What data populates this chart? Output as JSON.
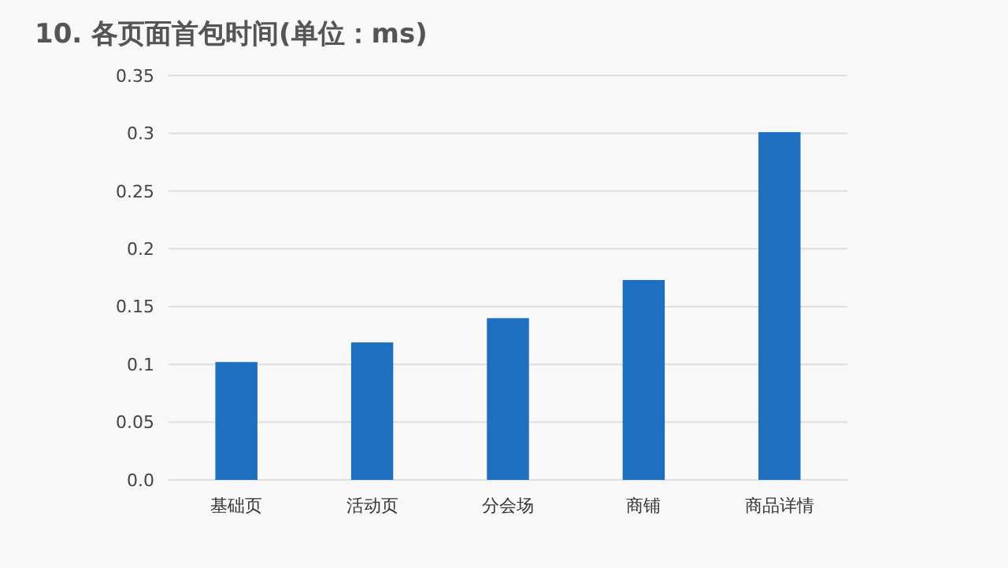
{
  "chart_data": {
    "type": "bar",
    "title": "10. 各页面首包时间(单位：ms)",
    "categories": [
      "基础页",
      "活动页",
      "分会场",
      "商铺",
      "商品详情"
    ],
    "values": [
      0.102,
      0.119,
      0.14,
      0.173,
      0.301
    ],
    "color": "#1f6fc0",
    "ylim": [
      0,
      0.35
    ],
    "yticks": [
      {
        "value": 0,
        "label": "0.0"
      },
      0.05,
      0.1,
      0.15,
      0.2,
      0.25,
      0.3,
      0.35
    ],
    "grid": "y"
  }
}
